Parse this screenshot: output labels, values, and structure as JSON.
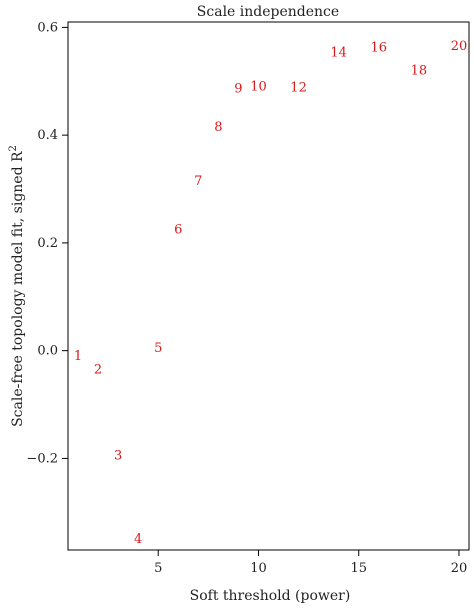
{
  "chart_data": {
    "type": "scatter",
    "title": "Scale independence",
    "xlabel": "Soft threshold (power)",
    "ylabel": "Scale-free topology model fit, signed R",
    "ylabel_sup": "2",
    "xlim": [
      0.5,
      20.5
    ],
    "ylim": [
      -0.37,
      0.61
    ],
    "xticks": [
      5,
      10,
      15,
      20
    ],
    "yticks": [
      -0.2,
      0.0,
      0.2,
      0.4,
      0.6
    ],
    "ytick_labels": [
      "−0.2",
      "0.0",
      "0.2",
      "0.4",
      "0.6"
    ],
    "point_color": "#d7191c",
    "points": [
      {
        "x": 1,
        "y": -0.01,
        "label": "1"
      },
      {
        "x": 2,
        "y": -0.035,
        "label": "2"
      },
      {
        "x": 3,
        "y": -0.195,
        "label": "3"
      },
      {
        "x": 4,
        "y": -0.35,
        "label": "4"
      },
      {
        "x": 5,
        "y": 0.005,
        "label": "5"
      },
      {
        "x": 6,
        "y": 0.225,
        "label": "6"
      },
      {
        "x": 7,
        "y": 0.315,
        "label": "7"
      },
      {
        "x": 8,
        "y": 0.415,
        "label": "8"
      },
      {
        "x": 9,
        "y": 0.487,
        "label": "9"
      },
      {
        "x": 10,
        "y": 0.49,
        "label": "10"
      },
      {
        "x": 12,
        "y": 0.488,
        "label": "12"
      },
      {
        "x": 14,
        "y": 0.553,
        "label": "14"
      },
      {
        "x": 16,
        "y": 0.563,
        "label": "16"
      },
      {
        "x": 18,
        "y": 0.52,
        "label": "18"
      },
      {
        "x": 20,
        "y": 0.565,
        "label": "20"
      }
    ]
  }
}
